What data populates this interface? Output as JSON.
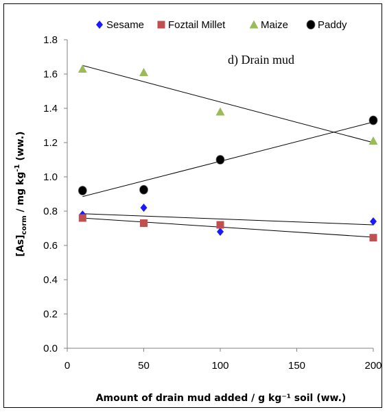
{
  "chart_data": {
    "type": "scatter",
    "annotation": "d) Drain  mud",
    "xlabel": "Amount of drain mud added / g kg⁻¹ soil (ww.)",
    "ylabel_parts": {
      "main": "[As]",
      "sub": "corm",
      "rest": "  /  mg kg",
      "sup": "-1",
      "end": " (ww.)"
    },
    "xlim": [
      0,
      200
    ],
    "ylim": [
      0,
      1.8
    ],
    "x_ticks": [
      "0",
      "50",
      "100",
      "150",
      "200"
    ],
    "y_ticks": [
      "0.0",
      "0.2",
      "0.4",
      "0.6",
      "0.8",
      "1.0",
      "1.2",
      "1.4",
      "1.6",
      "1.8"
    ],
    "legend_position": "top",
    "series": [
      {
        "name": "Sesame",
        "color": "#1a1aff",
        "marker": "diamond",
        "x": [
          10,
          50,
          100,
          200
        ],
        "y": [
          0.78,
          0.82,
          0.68,
          0.74
        ],
        "trend": [
          [
            10,
            0.785
          ],
          [
            200,
            0.72
          ]
        ]
      },
      {
        "name": "Foztail Millet",
        "color": "#c0504d",
        "marker": "square",
        "x": [
          10,
          50,
          100,
          200
        ],
        "y": [
          0.76,
          0.73,
          0.72,
          0.645
        ],
        "trend": [
          [
            10,
            0.76
          ],
          [
            200,
            0.648
          ]
        ]
      },
      {
        "name": "Maize",
        "color": "#9bbb59",
        "marker": "triangle",
        "x": [
          10,
          50,
          100,
          200
        ],
        "y": [
          1.63,
          1.61,
          1.38,
          1.21
        ],
        "trend": [
          [
            10,
            1.65
          ],
          [
            200,
            1.2
          ]
        ]
      },
      {
        "name": "Paddy",
        "color": "#000000",
        "marker": "circle",
        "x": [
          10,
          50,
          100,
          200
        ],
        "y": [
          0.92,
          0.925,
          1.1,
          1.33
        ],
        "trend": [
          [
            10,
            0.885
          ],
          [
            200,
            1.32
          ]
        ]
      }
    ]
  }
}
